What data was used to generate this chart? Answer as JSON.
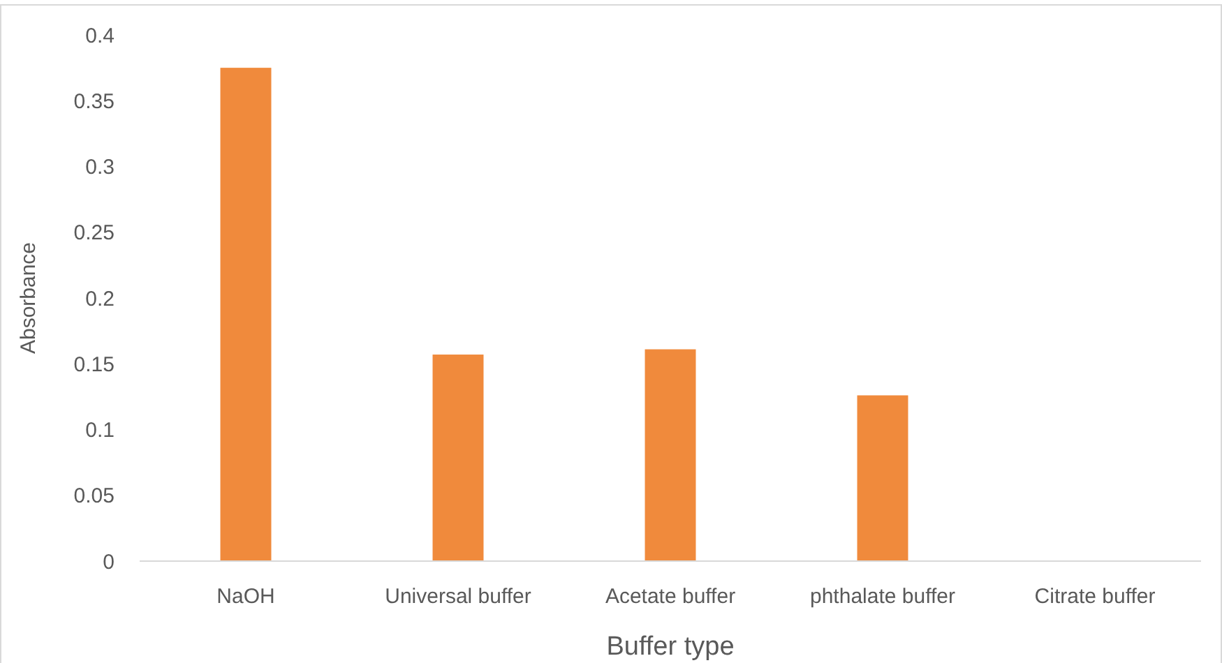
{
  "chart_data": {
    "type": "bar",
    "xlabel": "Buffer type",
    "ylabel": "Absorbance",
    "categories": [
      "NaOH",
      "Universal buffer",
      "Acetate buffer",
      "phthalate buffer",
      "Citrate buffer"
    ],
    "values": [
      0.375,
      0.157,
      0.161,
      0.126,
      0
    ],
    "color": "#f08a3c",
    "ylim": [
      0,
      0.4
    ],
    "yticks": [
      0,
      0.05,
      0.1,
      0.15,
      0.2,
      0.25,
      0.3,
      0.35,
      0.4
    ],
    "grid": false
  }
}
